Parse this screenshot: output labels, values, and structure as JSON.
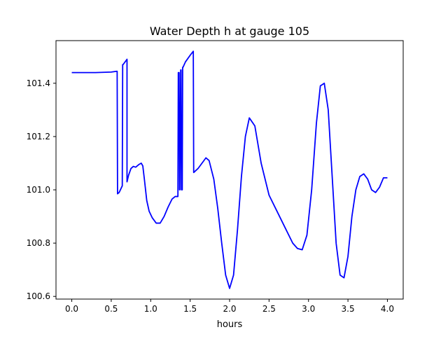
{
  "chart_data": {
    "type": "line",
    "title": "Water Depth h at gauge 105",
    "xlabel": "hours",
    "ylabel": "",
    "xlim": [
      -0.2,
      4.2
    ],
    "ylim": [
      100.59,
      101.56
    ],
    "xticks": [
      0.0,
      0.5,
      1.0,
      1.5,
      2.0,
      2.5,
      3.0,
      3.5,
      4.0
    ],
    "xtick_labels": [
      "0.0",
      "0.5",
      "1.0",
      "1.5",
      "2.0",
      "2.5",
      "3.0",
      "3.5",
      "4.0"
    ],
    "yticks": [
      100.6,
      100.8,
      101.0,
      101.2,
      101.4
    ],
    "ytick_labels": [
      "100.6",
      "100.8",
      "101.0",
      "101.2",
      "101.4"
    ],
    "grid": false,
    "legend": "none",
    "series": [
      {
        "color": "#0000ff",
        "x": [
          0.0,
          0.3,
          0.5,
          0.57,
          0.575,
          0.58,
          0.6,
          0.64,
          0.645,
          0.65,
          0.7,
          0.7,
          0.72,
          0.75,
          0.78,
          0.81,
          0.85,
          0.88,
          0.9,
          0.92,
          0.95,
          0.98,
          1.02,
          1.07,
          1.12,
          1.17,
          1.22,
          1.27,
          1.31,
          1.345,
          1.35,
          1.36,
          1.365,
          1.37,
          1.38,
          1.385,
          1.39,
          1.4,
          1.405,
          1.41,
          1.44,
          1.5,
          1.54,
          1.545,
          1.6,
          1.65,
          1.7,
          1.74,
          1.8,
          1.85,
          1.9,
          1.95,
          2.0,
          2.05,
          2.1,
          2.15,
          2.2,
          2.25,
          2.32,
          2.4,
          2.5,
          2.6,
          2.7,
          2.8,
          2.86,
          2.92,
          2.98,
          3.04,
          3.1,
          3.15,
          3.2,
          3.25,
          3.3,
          3.35,
          3.4,
          3.45,
          3.5,
          3.55,
          3.6,
          3.65,
          3.7,
          3.75,
          3.8,
          3.85,
          3.9,
          3.95,
          4.0
        ],
        "y": [
          101.44,
          101.44,
          101.442,
          101.445,
          101.445,
          100.985,
          100.99,
          101.015,
          101.47,
          101.47,
          101.49,
          101.03,
          101.055,
          101.08,
          101.088,
          101.085,
          101.095,
          101.1,
          101.09,
          101.04,
          100.96,
          100.92,
          100.895,
          100.875,
          100.875,
          100.9,
          100.935,
          100.965,
          100.975,
          100.975,
          101.44,
          101.44,
          101.0,
          101.0,
          101.45,
          101.45,
          101.0,
          101.0,
          101.46,
          101.46,
          101.48,
          101.505,
          101.52,
          101.065,
          101.08,
          101.1,
          101.12,
          101.11,
          101.04,
          100.93,
          100.8,
          100.68,
          100.63,
          100.68,
          100.85,
          101.05,
          101.2,
          101.27,
          101.24,
          101.1,
          100.98,
          100.92,
          100.86,
          100.8,
          100.78,
          100.775,
          100.83,
          101.0,
          101.25,
          101.39,
          101.4,
          101.3,
          101.05,
          100.8,
          100.68,
          100.67,
          100.75,
          100.9,
          101.0,
          101.05,
          101.06,
          101.04,
          101.0,
          100.99,
          101.01,
          101.045,
          101.045
        ]
      }
    ]
  }
}
